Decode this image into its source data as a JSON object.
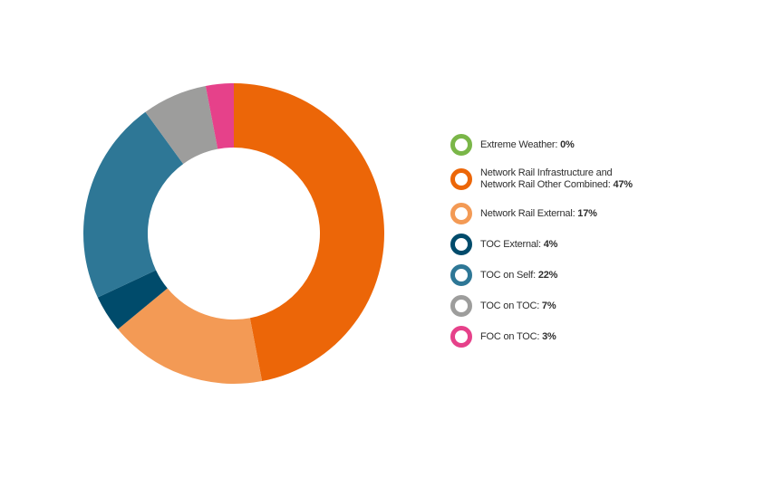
{
  "chart_data": {
    "type": "pie",
    "donut": true,
    "legend_position": "right",
    "slices": [
      {
        "label": "Extreme Weather",
        "value": 0,
        "value_label": "0%",
        "color": "#7ab648"
      },
      {
        "label": "Network Rail Infrastructure and Network Rail Other Combined",
        "label_line1": "Network Rail Infrastructure and",
        "label_line2": "Network Rail Other Combined",
        "value": 47,
        "value_label": "47%",
        "color": "#ec6608"
      },
      {
        "label": "Network Rail External",
        "value": 17,
        "value_label": "17%",
        "color": "#f39a55"
      },
      {
        "label": "TOC External",
        "value": 4,
        "value_label": "4%",
        "color": "#004b6b"
      },
      {
        "label": "TOC on Self",
        "value": 22,
        "value_label": "22%",
        "color": "#2e7796"
      },
      {
        "label": "TOC on TOC",
        "value": 7,
        "value_label": "7%",
        "color": "#9d9d9c"
      },
      {
        "label": "FOC on TOC",
        "value": 3,
        "value_label": "3%",
        "color": "#e6418a"
      }
    ]
  }
}
